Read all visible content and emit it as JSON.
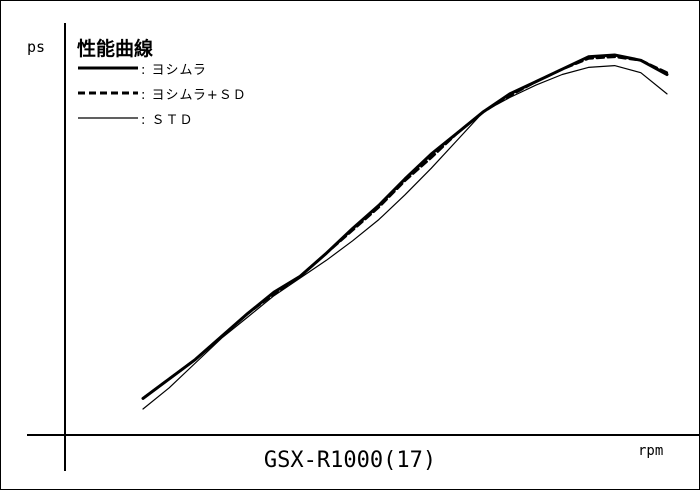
{
  "chart_data": {
    "type": "line",
    "title": "性能曲線",
    "ylabel": "ps",
    "xlabel": "rpm",
    "model_label": "GSX-R1000(17)",
    "x_ticks": [],
    "y_ticks": [],
    "legend_placement": "top-left",
    "grid": false,
    "x_unit_note": "relative rpm position, 0 = curve start, 100 = curve end (axis has no tick values)",
    "y_unit_note": "relative ps, 0 = lowest plotted value, 100 = peak (axis has no tick values)",
    "series": [
      {
        "name": ": ヨシムラ",
        "style": "solid-bold",
        "color": "#000000",
        "x": [
          0,
          5,
          10,
          15,
          20,
          25,
          30,
          35,
          40,
          45,
          50,
          55,
          60,
          65,
          70,
          75,
          80,
          85,
          90,
          95,
          100
        ],
        "y": [
          3,
          8.5,
          14,
          20.5,
          27,
          33,
          37.5,
          44,
          51,
          57.5,
          65,
          72,
          78,
          84,
          89,
          92.5,
          96,
          99.5,
          100,
          98.5,
          94.5
        ]
      },
      {
        "name": ": ヨシムラ+ＳＤ",
        "style": "dashed",
        "color": "#000000",
        "x": [
          0,
          5,
          10,
          15,
          20,
          25,
          30,
          35,
          40,
          45,
          50,
          55,
          60,
          65,
          70,
          75,
          80,
          85,
          90,
          95,
          100
        ],
        "y": [
          3,
          8.5,
          14,
          20.5,
          27,
          32.5,
          37.5,
          44,
          50.5,
          57,
          64.5,
          71,
          78,
          84,
          88.5,
          92.5,
          96,
          99,
          99.5,
          98.5,
          95
        ]
      },
      {
        "name": ": ＳＴＤ",
        "style": "solid-thin",
        "color": "#000000",
        "x": [
          0,
          5,
          10,
          15,
          20,
          25,
          30,
          35,
          40,
          45,
          50,
          55,
          60,
          65,
          70,
          75,
          80,
          85,
          90,
          95,
          100
        ],
        "y": [
          0,
          6,
          13,
          20,
          26,
          32,
          37,
          42,
          47.5,
          53.5,
          60.5,
          68,
          76,
          84,
          88,
          91.5,
          94.5,
          96.5,
          97,
          95,
          89
        ]
      }
    ]
  }
}
